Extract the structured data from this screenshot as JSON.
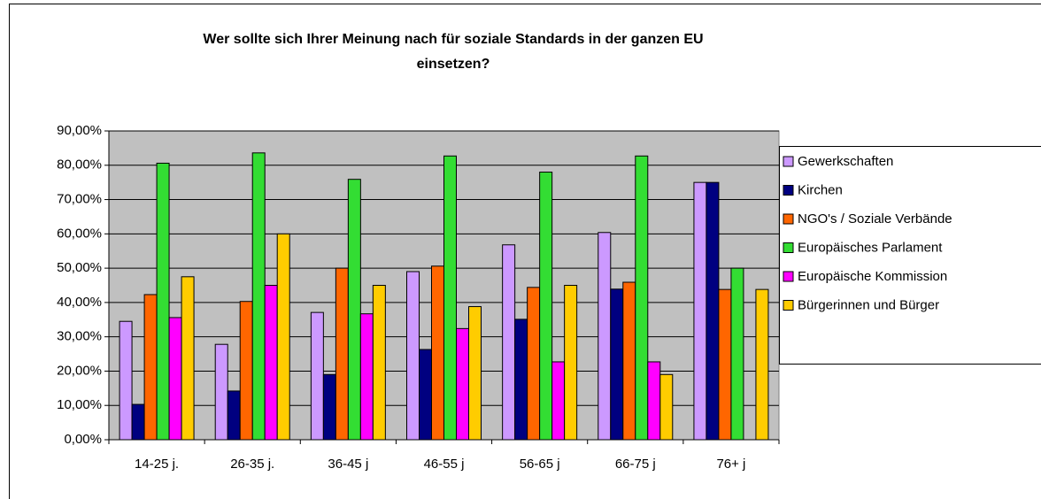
{
  "chart_data": {
    "type": "bar",
    "title": "Wer sollte sich Ihrer Meinung nach für soziale Standards in der ganzen EU einsetzen?",
    "categories": [
      "14-25 j.",
      "26-35 j.",
      "36-45 j",
      "46-55 j",
      "56-65 j",
      "66-75 j",
      "76+ j"
    ],
    "series": [
      {
        "name": "Gewerkschaften",
        "color": "#cc99ff",
        "values": [
          34.5,
          27.8,
          37.1,
          49.0,
          56.8,
          60.4,
          75.0
        ]
      },
      {
        "name": "Kirchen",
        "color": "#000080",
        "values": [
          10.3,
          14.2,
          19.0,
          26.3,
          35.1,
          43.9,
          75.0
        ]
      },
      {
        "name": "NGO's / Soziale Verbände",
        "color": "#ff6600",
        "values": [
          42.3,
          40.3,
          50.0,
          50.6,
          44.4,
          45.9,
          43.8
        ]
      },
      {
        "name": "Europäisches Parlament",
        "color": "#33dd33",
        "values": [
          80.6,
          83.6,
          75.9,
          82.7,
          78.0,
          82.7,
          50.0
        ]
      },
      {
        "name": "Europäische Kommission",
        "color": "#ff00ff",
        "values": [
          35.6,
          45.0,
          36.7,
          32.4,
          22.7,
          22.7,
          0
        ]
      },
      {
        "name": "Bürgerinnen und Bürger",
        "color": "#ffcc00",
        "values": [
          47.5,
          60.0,
          45.0,
          38.8,
          45.0,
          19.0,
          43.8
        ]
      }
    ],
    "ylim": [
      0,
      90
    ],
    "yticks": [
      {
        "value": 0,
        "label": "0,00%"
      },
      {
        "value": 10,
        "label": "10,00%"
      },
      {
        "value": 20,
        "label": "20,00%"
      },
      {
        "value": 30,
        "label": "30,00%"
      },
      {
        "value": 40,
        "label": "40,00%"
      },
      {
        "value": 50,
        "label": "50,00%"
      },
      {
        "value": 60,
        "label": "60,00%"
      },
      {
        "value": 70,
        "label": "70,00%"
      },
      {
        "value": 80,
        "label": "80,00%"
      },
      {
        "value": 90,
        "label": "90,00%"
      }
    ],
    "grid": true,
    "legend": "right"
  }
}
